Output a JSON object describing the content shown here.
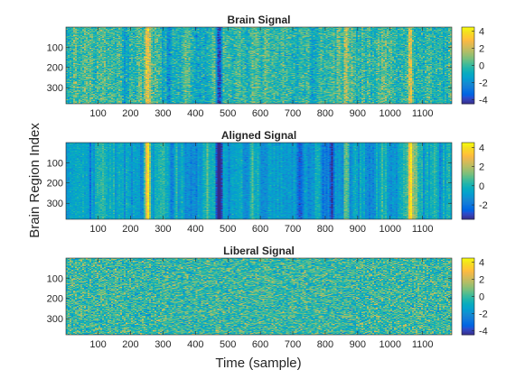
{
  "figure": {
    "shared_xlabel": "Time (sample)",
    "shared_ylabel": "Brain Region Index"
  },
  "chart_data": [
    {
      "type": "heatmap",
      "title": "Brain Signal",
      "colormap": "parula",
      "xlim": [
        1,
        1190
      ],
      "ylim": [
        1,
        379
      ],
      "xticks": [
        100,
        200,
        300,
        400,
        500,
        600,
        700,
        800,
        900,
        1000,
        1100
      ],
      "yticks": [
        100,
        200,
        300
      ],
      "clim": [
        -4.5,
        4.5
      ],
      "colorbar_ticks": [
        4,
        2,
        0,
        -2,
        -4
      ],
      "structure": "random noise with column-wise bands",
      "column_bands": [
        {
          "x": 245,
          "value": 1.8
        },
        {
          "x": 252,
          "value": 2.2
        },
        {
          "x": 258,
          "value": 1.6
        },
        {
          "x": 472,
          "value": -3.5
        },
        {
          "x": 478,
          "value": -3.0
        },
        {
          "x": 1060,
          "value": 2.4
        },
        {
          "x": 1068,
          "value": 2.0
        },
        {
          "x": 865,
          "value": 1.5
        },
        {
          "x": 178,
          "value": -1.6
        },
        {
          "x": 320,
          "value": -1.8
        }
      ]
    },
    {
      "type": "heatmap",
      "title": "Aligned Signal",
      "colormap": "parula",
      "xlim": [
        1,
        1190
      ],
      "ylim": [
        1,
        379
      ],
      "xticks": [
        100,
        200,
        300,
        400,
        500,
        600,
        700,
        800,
        900,
        1000,
        1100
      ],
      "yticks": [
        100,
        200,
        300
      ],
      "clim": [
        -3.5,
        4.5
      ],
      "colorbar_ticks": [
        4,
        2,
        0,
        -2
      ],
      "structure": "strong column-wise bands, weak row variation",
      "column_bands": [
        {
          "x": 245,
          "value": 2.4
        },
        {
          "x": 252,
          "value": 2.8
        },
        {
          "x": 472,
          "value": -3.2
        },
        {
          "x": 478,
          "value": -3.0
        },
        {
          "x": 1060,
          "value": 2.6
        },
        {
          "x": 1068,
          "value": 2.2
        },
        {
          "x": 865,
          "value": 1.8
        },
        {
          "x": 820,
          "value": -2.2
        },
        {
          "x": 720,
          "value": -2.0
        }
      ]
    },
    {
      "type": "heatmap",
      "title": "Liberal Signal",
      "colormap": "parula",
      "xlim": [
        1,
        1190
      ],
      "ylim": [
        1,
        379
      ],
      "xticks": [
        100,
        200,
        300,
        400,
        500,
        600,
        700,
        800,
        900,
        1000,
        1100
      ],
      "yticks": [
        100,
        200,
        300
      ],
      "clim": [
        -4.5,
        4.5
      ],
      "colorbar_ticks": [
        4,
        2,
        0,
        -2,
        -4
      ],
      "structure": "mostly uniform random noise"
    }
  ]
}
